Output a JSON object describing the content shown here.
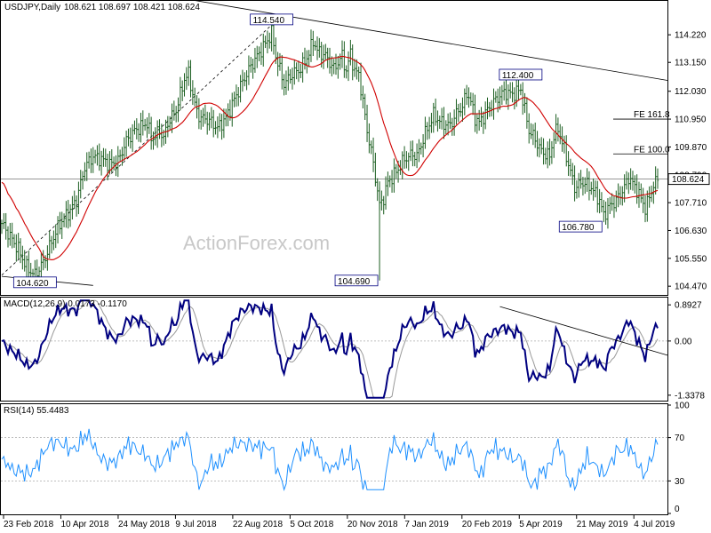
{
  "chart_data": {
    "type": "candlestick-with-indicators",
    "symbol_header": "USDJPY,Daily",
    "ohlc_header": "108.621 108.697 108.421 108.624",
    "ohlc": {
      "open": 108.621,
      "high": 108.697,
      "low": 108.421,
      "close": 108.624
    },
    "watermark": "ActionForex.com",
    "x_axis": {
      "tick_labels": [
        "23 Feb 2018",
        "10 Apr 2018",
        "24 May 2018",
        "9 Jul 2018",
        "22 Aug 2018",
        "5 Oct 2018",
        "20 Nov 2018",
        "7 Jan 2019",
        "20 Feb 2019",
        "5 Apr 2019",
        "21 May 2019",
        "4 Jul 2019"
      ]
    },
    "price_panel": {
      "y_ticks": [
        "114.220",
        "113.150",
        "112.030",
        "110.950",
        "109.870",
        "108.790",
        "107.710",
        "106.630",
        "105.550",
        "104.470"
      ],
      "ylim": [
        104.2,
        115.5
      ],
      "current_price": "108.624",
      "moving_average": "red",
      "series": [
        [
          0,
          106.9
        ],
        [
          4,
          106.4
        ],
        [
          8,
          105.9
        ],
        [
          12,
          105.2
        ],
        [
          16,
          104.9
        ],
        [
          20,
          105.4
        ],
        [
          24,
          106.2
        ],
        [
          28,
          106.9
        ],
        [
          32,
          107.3
        ],
        [
          36,
          107.8
        ],
        [
          40,
          109.1
        ],
        [
          44,
          109.5
        ],
        [
          48,
          109.4
        ],
        [
          52,
          109.2
        ],
        [
          56,
          109.3
        ],
        [
          60,
          110.1
        ],
        [
          64,
          110.5
        ],
        [
          68,
          110.7
        ],
        [
          70,
          110.8
        ],
        [
          72,
          110.2
        ],
        [
          74,
          110.3
        ],
        [
          76,
          110.5
        ],
        [
          78,
          110.2
        ],
        [
          80,
          110.8
        ],
        [
          84,
          111.3
        ],
        [
          88,
          112.5
        ],
        [
          90,
          112.7
        ],
        [
          92,
          111.9
        ],
        [
          94,
          111.2
        ],
        [
          96,
          111.0
        ],
        [
          100,
          110.9
        ],
        [
          104,
          110.6
        ],
        [
          108,
          111.0
        ],
        [
          112,
          111.7
        ],
        [
          116,
          112.4
        ],
        [
          120,
          113.0
        ],
        [
          124,
          113.5
        ],
        [
          128,
          114.0
        ],
        [
          130,
          114.3
        ],
        [
          132,
          113.4
        ],
        [
          136,
          112.3
        ],
        [
          140,
          112.7
        ],
        [
          144,
          112.9
        ],
        [
          148,
          113.5
        ],
        [
          150,
          114.0
        ],
        [
          152,
          113.6
        ],
        [
          156,
          113.4
        ],
        [
          160,
          112.9
        ],
        [
          164,
          113.4
        ],
        [
          166,
          112.8
        ],
        [
          168,
          113.5
        ],
        [
          170,
          112.8
        ],
        [
          172,
          112.7
        ],
        [
          174,
          111.6
        ],
        [
          176,
          110.5
        ],
        [
          178,
          109.7
        ],
        [
          180,
          108.7
        ],
        [
          182,
          107.6
        ],
        [
          184,
          107.9
        ],
        [
          186,
          108.5
        ],
        [
          190,
          108.9
        ],
        [
          194,
          109.4
        ],
        [
          198,
          109.6
        ],
        [
          200,
          109.5
        ],
        [
          204,
          110.4
        ],
        [
          208,
          111.1
        ],
        [
          212,
          110.8
        ],
        [
          216,
          110.7
        ],
        [
          220,
          111.3
        ],
        [
          222,
          111.4
        ],
        [
          224,
          112.0
        ],
        [
          226,
          111.6
        ],
        [
          228,
          111.0
        ],
        [
          230,
          110.8
        ],
        [
          234,
          111.3
        ],
        [
          238,
          111.7
        ],
        [
          242,
          112.0
        ],
        [
          246,
          111.9
        ],
        [
          250,
          112.1
        ],
        [
          254,
          110.5
        ],
        [
          256,
          110.3
        ],
        [
          260,
          109.7
        ],
        [
          264,
          109.5
        ],
        [
          266,
          110.3
        ],
        [
          268,
          110.6
        ],
        [
          272,
          109.5
        ],
        [
          276,
          108.3
        ],
        [
          280,
          108.5
        ],
        [
          284,
          108.3
        ],
        [
          288,
          107.8
        ],
        [
          290,
          107.2
        ],
        [
          292,
          107.5
        ],
        [
          296,
          107.8
        ],
        [
          300,
          108.3
        ],
        [
          302,
          108.7
        ],
        [
          306,
          108.2
        ],
        [
          310,
          107.5
        ],
        [
          312,
          107.9
        ],
        [
          314,
          108.4
        ],
        [
          316,
          108.6
        ]
      ],
      "annotations": [
        {
          "label": "114.540",
          "x": 130,
          "y": 114.54
        },
        {
          "label": "112.400",
          "x": 250,
          "y": 112.4
        },
        {
          "label": "106.780",
          "x": 290,
          "y": 106.78
        },
        {
          "label": "104.690",
          "x": 182,
          "y": 104.69
        },
        {
          "label": "104.620",
          "x": 16,
          "y": 104.62
        },
        {
          "label": "FE 161.8",
          "x": 300,
          "y": 110.95
        },
        {
          "label": "FE 100.0",
          "x": 300,
          "y": 109.6
        }
      ]
    },
    "macd_panel": {
      "title": "MACD(12,26,9) 0.0173 -0.1170",
      "y_ticks": [
        "0.8927",
        "0.00",
        "-1.3378"
      ],
      "ylim": [
        -1.45,
        1.05
      ]
    },
    "rsi_panel": {
      "title": "RSI(14) 55.4483",
      "y_ticks": [
        "100",
        "70",
        "30",
        "0"
      ],
      "ylim": [
        0,
        100
      ]
    }
  }
}
